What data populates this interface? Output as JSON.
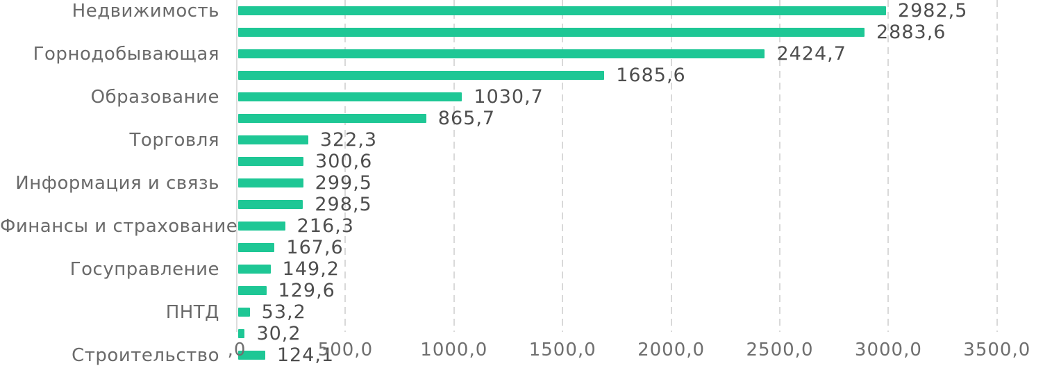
{
  "chart_data": {
    "type": "bar",
    "orientation": "horizontal",
    "title": "",
    "xlabel": "",
    "ylabel": "",
    "xlim": [
      0,
      3500
    ],
    "grid": "vertical-dashed",
    "legend": "none",
    "bar_color": "#1ec795",
    "x_ticks": [
      ",0",
      "500,0",
      "1000,0",
      "1500,0",
      "2000,0",
      "2500,0",
      "3000,0",
      "3500,0"
    ],
    "x_tick_values": [
      0,
      500,
      1000,
      1500,
      2000,
      2500,
      3000,
      3500
    ],
    "categories": [
      "Недвижимость",
      "Горнодобывающая",
      "Образование",
      "Торговля",
      "Информация и связь",
      "Финансы и страхование",
      "Госуправление",
      "ПНТД",
      "Строительство"
    ],
    "rows": [
      {
        "label": "Недвижимость",
        "value": 2982.5,
        "display": "2982,5"
      },
      {
        "label": "",
        "value": 2883.6,
        "display": "2883,6"
      },
      {
        "label": "Горнодобывающая",
        "value": 2424.7,
        "display": "2424,7"
      },
      {
        "label": "",
        "value": 1685.6,
        "display": "1685,6"
      },
      {
        "label": "Образование",
        "value": 1030.7,
        "display": "1030,7"
      },
      {
        "label": "",
        "value": 865.7,
        "display": "865,7"
      },
      {
        "label": "Торговля",
        "value": 322.3,
        "display": "322,3"
      },
      {
        "label": "",
        "value": 300.6,
        "display": "300,6"
      },
      {
        "label": "Информация и связь",
        "value": 299.5,
        "display": "299,5"
      },
      {
        "label": "",
        "value": 298.5,
        "display": "298,5"
      },
      {
        "label": "Финансы и страхование",
        "value": 216.3,
        "display": "216,3"
      },
      {
        "label": "",
        "value": 167.6,
        "display": "167,6"
      },
      {
        "label": "Госуправление",
        "value": 149.2,
        "display": "149,2"
      },
      {
        "label": "",
        "value": 129.6,
        "display": "129,6"
      },
      {
        "label": "ПНТД",
        "value": 53.2,
        "display": "53,2"
      },
      {
        "label": "",
        "value": 30.2,
        "display": "30,2"
      },
      {
        "label": "Строительство",
        "value": 124.1,
        "display": "124,1"
      }
    ]
  }
}
